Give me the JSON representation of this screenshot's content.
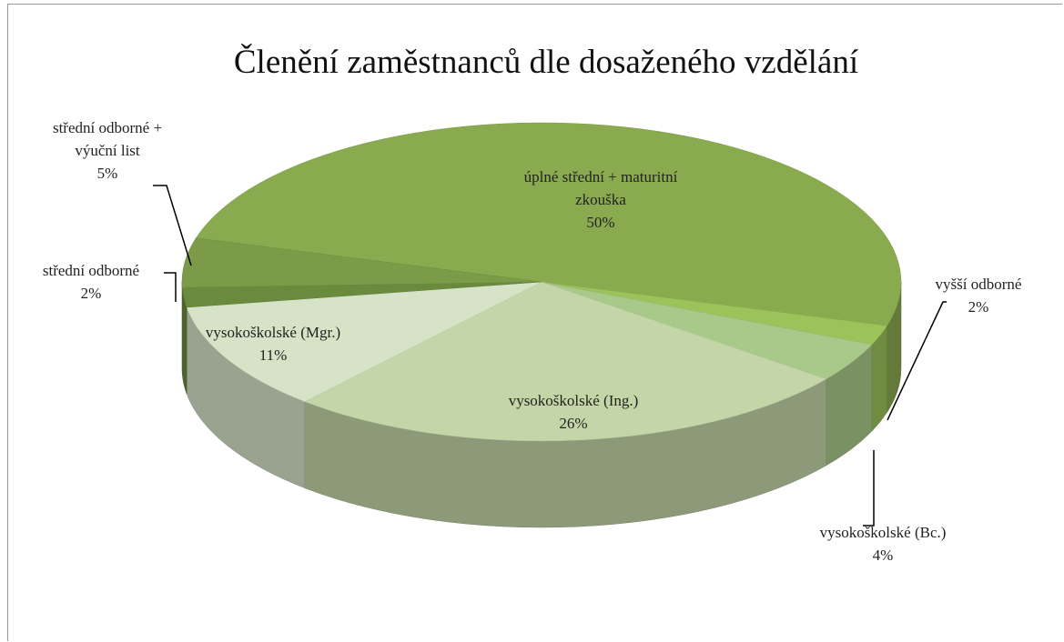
{
  "chart_data": {
    "type": "pie",
    "title": "Členění zaměstnanců dle dosaženého vzdělání",
    "categories": [
      "úplné střední + maturitní zkouška",
      "vyšší odborné",
      "vysokoškolské (Bc.)",
      "vysokoškolské (Ing.)",
      "vysokoškolské (Mgr.)",
      "střední odborné",
      "střední odborné + výuční list"
    ],
    "values": [
      50,
      2,
      4,
      26,
      11,
      2,
      5
    ],
    "value_labels": [
      "50%",
      "2%",
      "4%",
      "26%",
      "11%",
      "2%",
      "5%"
    ],
    "colors": [
      "#8aaa50",
      "#9cc25a",
      "#a9c98a",
      "#c4d6a8",
      "#d6e3c6",
      "#6a8a3e",
      "#7b9b48"
    ]
  }
}
